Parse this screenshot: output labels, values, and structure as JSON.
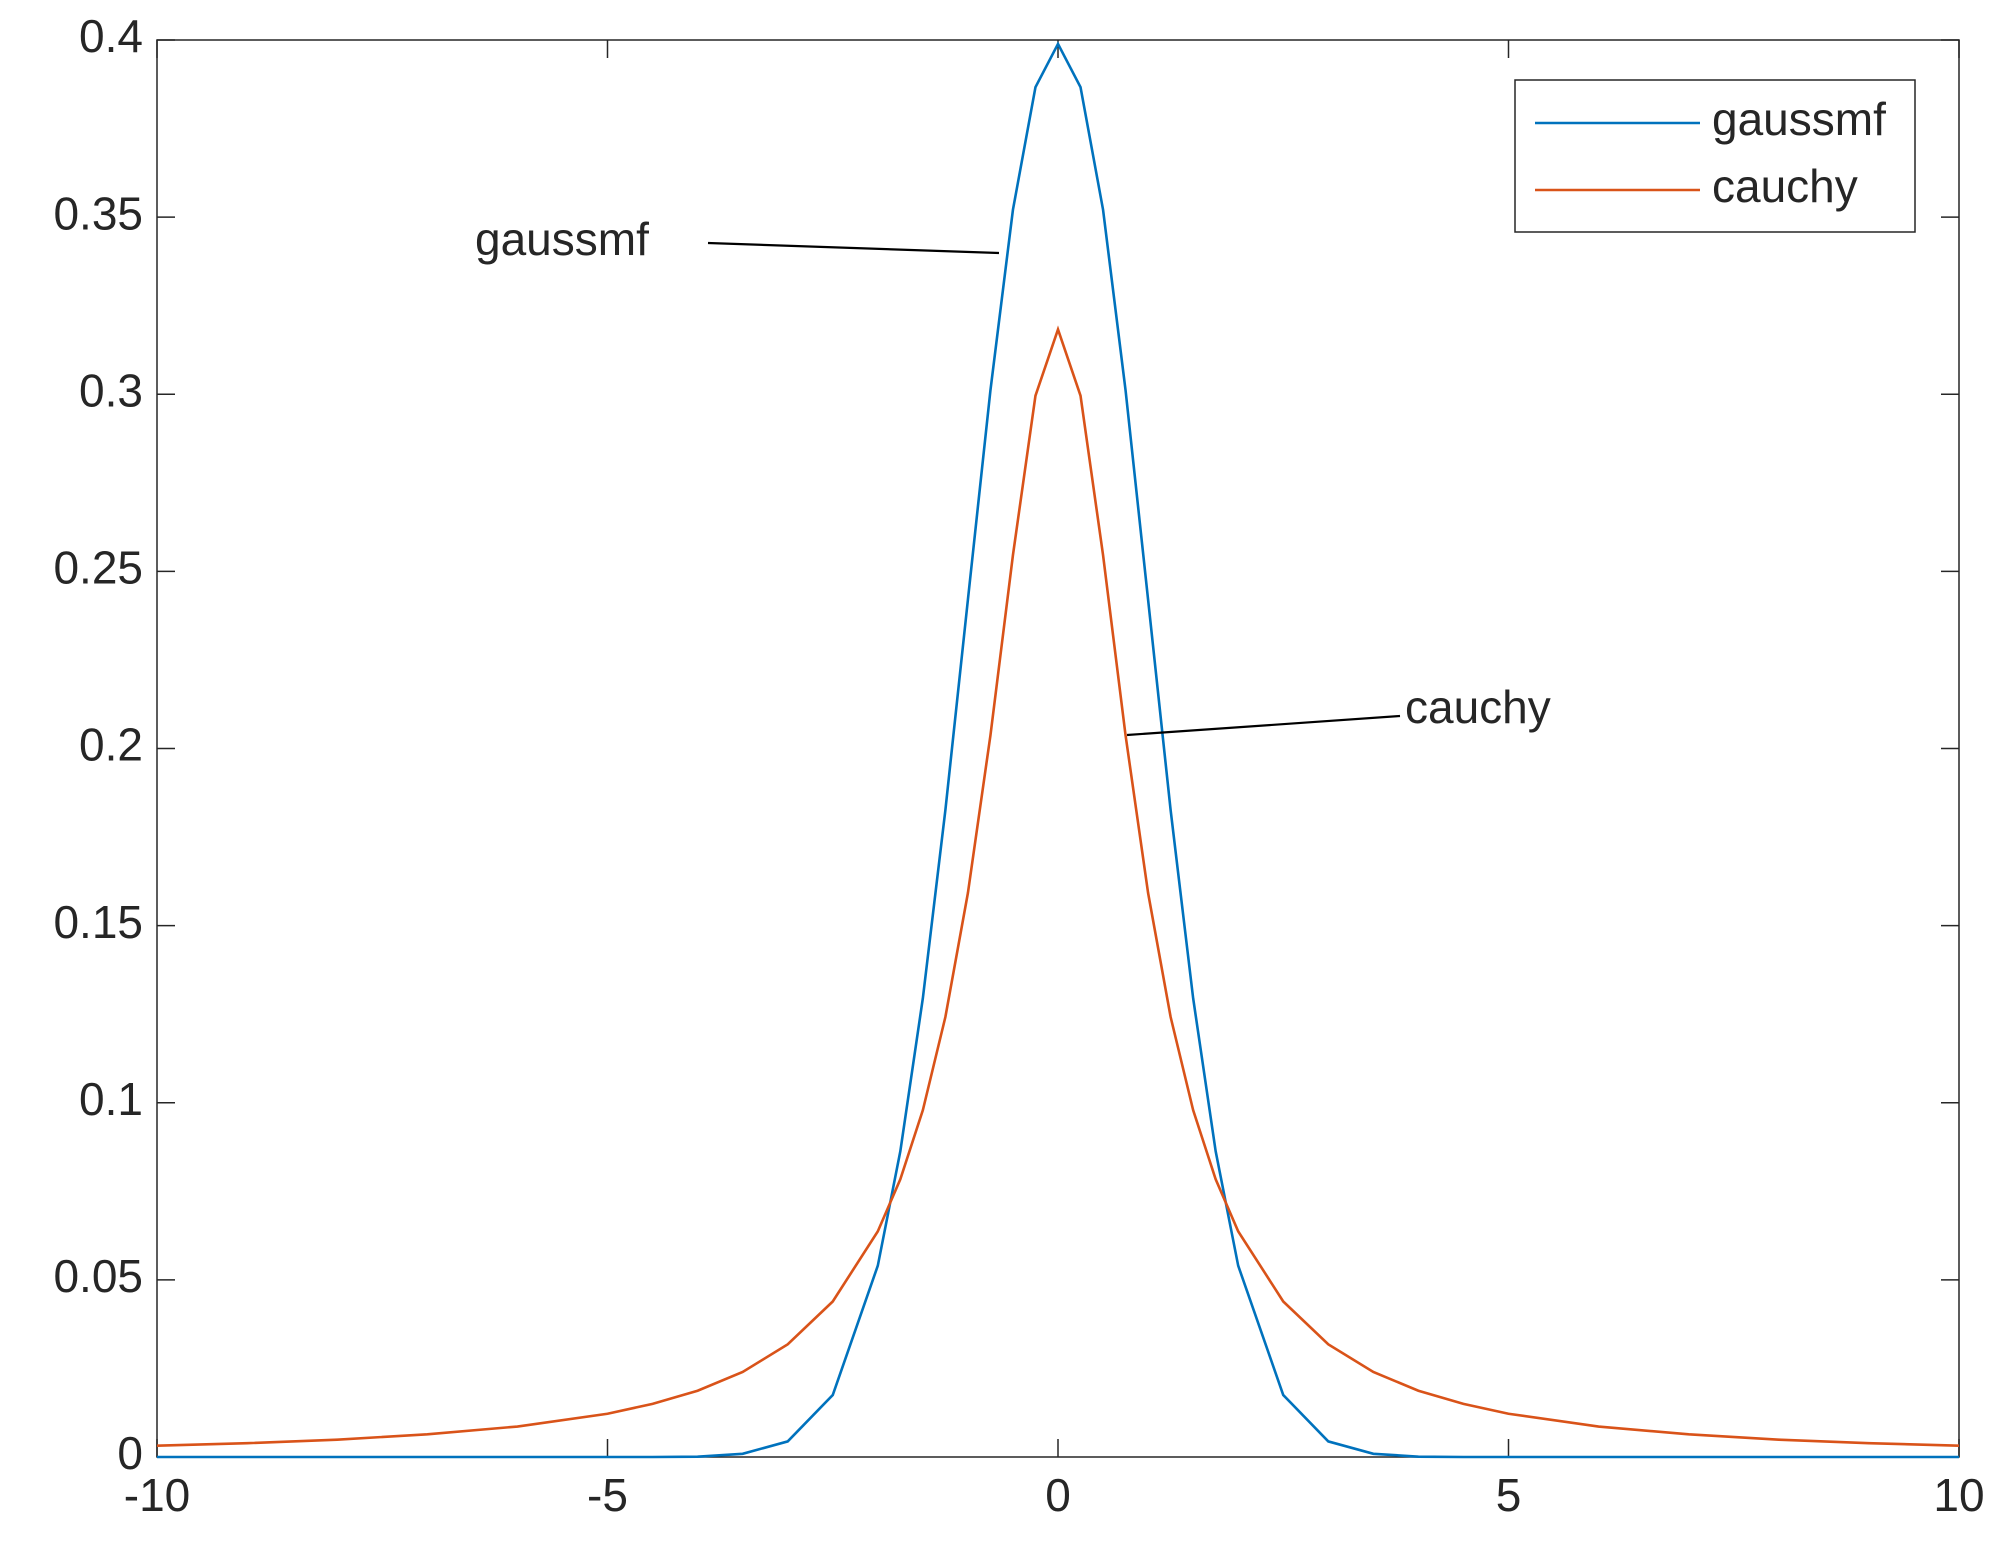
{
  "chart_data": {
    "type": "line",
    "x": [
      -10,
      -9,
      -8,
      -7,
      -6,
      -5,
      -4.5,
      -4,
      -3.5,
      -3,
      -2.5,
      -2,
      -1.75,
      -1.5,
      -1.25,
      -1,
      -0.75,
      -0.5,
      -0.25,
      0,
      0.25,
      0.5,
      0.75,
      1,
      1.25,
      1.5,
      1.75,
      2,
      2.5,
      3,
      3.5,
      4,
      4.5,
      5,
      6,
      7,
      8,
      9,
      10
    ],
    "series": [
      {
        "name": "gaussmf",
        "color": "#0072bd",
        "values": [
          0,
          0,
          0,
          0,
          0,
          0,
          0,
          0.0001,
          0.0009,
          0.0044,
          0.0175,
          0.054,
          0.0863,
          0.1295,
          0.1826,
          0.242,
          0.3011,
          0.3521,
          0.3867,
          0.3989,
          0.3867,
          0.3521,
          0.3011,
          0.242,
          0.1826,
          0.1295,
          0.0863,
          0.054,
          0.0175,
          0.0044,
          0.0009,
          0.0001,
          0,
          0,
          0,
          0,
          0,
          0,
          0
        ]
      },
      {
        "name": "cauchy",
        "color": "#d95319",
        "values": [
          0.0032,
          0.0039,
          0.0049,
          0.0064,
          0.0086,
          0.0122,
          0.015,
          0.0187,
          0.024,
          0.0318,
          0.0439,
          0.0637,
          0.0784,
          0.0979,
          0.1242,
          0.1592,
          0.2037,
          0.2546,
          0.2996,
          0.3183,
          0.2996,
          0.2546,
          0.2037,
          0.1592,
          0.1242,
          0.0979,
          0.0784,
          0.0637,
          0.0439,
          0.0318,
          0.024,
          0.0187,
          0.015,
          0.0122,
          0.0086,
          0.0064,
          0.0049,
          0.0039,
          0.0032
        ]
      }
    ],
    "xlim": [
      -10,
      10
    ],
    "xticks": [
      -10,
      -5,
      0,
      5,
      10
    ],
    "ylim": [
      0,
      0.4
    ],
    "yticks": [
      0,
      0.05,
      0.1,
      0.15,
      0.2,
      0.25,
      0.3,
      0.35,
      0.4
    ],
    "legend": "top-right",
    "annotations": [
      {
        "text": "gaussmf"
      },
      {
        "text": "cauchy"
      }
    ]
  }
}
